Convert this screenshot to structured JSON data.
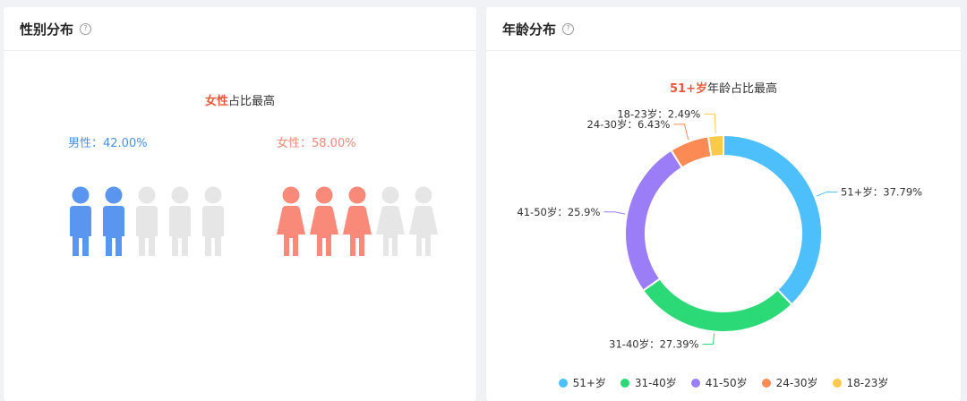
{
  "gender_card": {
    "title": "性别分布",
    "headline_highlight": "女性",
    "headline_rest": "占比最高",
    "male_label": "男性：42.00%",
    "female_label": "女性：58.00%",
    "male_icon": "male-person-icon",
    "female_icon": "female-person-icon",
    "male_share": 0.42,
    "female_share": 0.58,
    "icon_count": 5,
    "male_color": "#5a96f0",
    "female_color": "#f98a7a",
    "empty_color": "#e6e6e6"
  },
  "age_card": {
    "title": "年龄分布",
    "headline_highlight": "51+岁",
    "headline_rest": "年龄占比最高"
  },
  "chart_data": [
    {
      "type": "pictogram",
      "categories": [
        "男性",
        "女性"
      ],
      "values": [
        42.0,
        58.0
      ],
      "units": "%",
      "icons_per_category": 5,
      "filled_icons": [
        2,
        3
      ]
    },
    {
      "type": "pie",
      "donut": true,
      "categories": [
        "51+岁",
        "31-40岁",
        "41-50岁",
        "24-30岁",
        "18-23岁"
      ],
      "values": [
        37.79,
        27.39,
        25.9,
        6.43,
        2.49
      ],
      "labels": [
        "51+岁：37.79%",
        "31-40岁：27.39%",
        "41-50岁：25.9%",
        "24-30岁：6.43%",
        "18-23岁：2.49%"
      ],
      "colors": [
        "#4dbffa",
        "#2bd977",
        "#9b7ef7",
        "#fb8a55",
        "#fdc94a"
      ],
      "legend": "bottom"
    }
  ]
}
